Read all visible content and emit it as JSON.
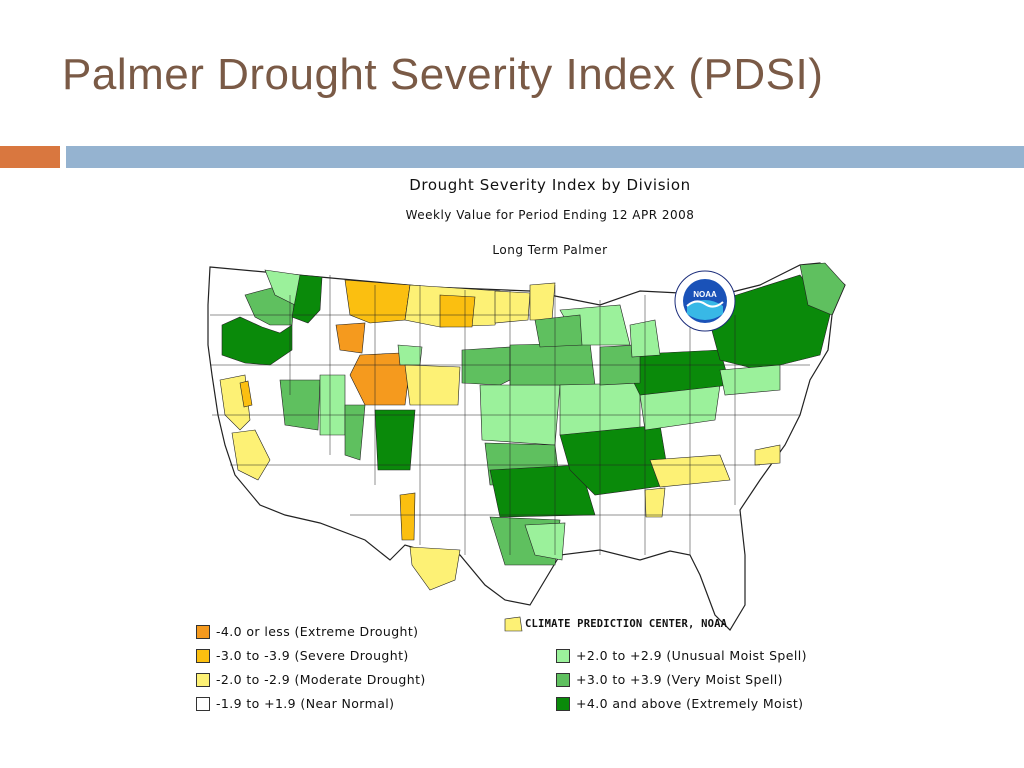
{
  "slide": {
    "title": "Palmer Drought Severity Index (PDSI)",
    "accent_orange": "#d9773f",
    "accent_blue": "#95b3d0"
  },
  "map": {
    "title": "Drought Severity Index by Division",
    "subtitle": "Weekly Value for Period Ending 12 APR 2008",
    "subtitle2": "Long Term Palmer",
    "credit": "CLIMATE PREDICTION CENTER, NOAA",
    "logo_text": "NOAA"
  },
  "legend": {
    "left": [
      {
        "label": "-4.0 or less (Extreme Drought)",
        "color": "#f59a1e"
      },
      {
        "label": "-3.0 to -3.9 (Severe Drought)",
        "color": "#fbbf10"
      },
      {
        "label": "-2.0 to -2.9 (Moderate Drought)",
        "color": "#fdf175"
      },
      {
        "label": "-1.9 to +1.9 (Near Normal)",
        "color": "#ffffff"
      }
    ],
    "right": [
      {
        "label": "+2.0 to +2.9 (Unusual Moist Spell)",
        "color": "#9bf19b"
      },
      {
        "label": "+3.0 to +3.9 (Very Moist Spell)",
        "color": "#5fc05f"
      },
      {
        "label": "+4.0 and above (Extremely Moist)",
        "color": "#0a8a0a"
      }
    ]
  }
}
